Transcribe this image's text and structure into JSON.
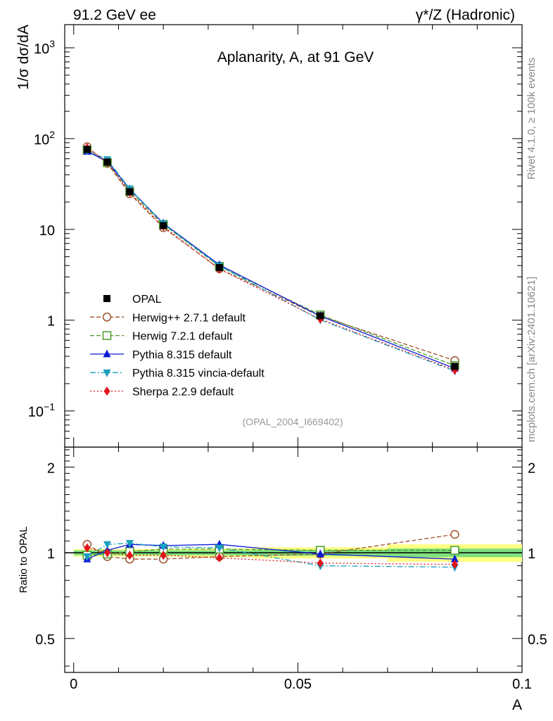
{
  "header": {
    "left_label": "91.2 GeV ee",
    "right_label": "γ*/Z (Hadronic)"
  },
  "side_labels": {
    "rivet": "Rivet 4.1.0, ≥ 100k events",
    "mcplots": "mcplots.cern.ch [arXiv:2401.10621]"
  },
  "chart_data": {
    "type": "line",
    "title": "Aplanarity, A, at 91 GeV",
    "watermark": "(OPAL_2004_I669402)",
    "xlabel": "A",
    "ylabel": "1/σ  dσ/dA",
    "ratio_ylabel": "Ratio to OPAL",
    "xlim": [
      -0.002,
      0.1
    ],
    "ylim": [
      0.04,
      1800
    ],
    "yscale": "log",
    "ratio_ylim": [
      0.38,
      2.35
    ],
    "x_ticks": [
      {
        "value": 0,
        "label": "0"
      },
      {
        "value": 0.05,
        "label": "0.05"
      },
      {
        "value": 0.1,
        "label": "0.1"
      }
    ],
    "y_ticks": [
      {
        "value": 0.1,
        "label": "10",
        "exp": "−1"
      },
      {
        "value": 1,
        "label": "1",
        "exp": ""
      },
      {
        "value": 10,
        "label": "10",
        "exp": ""
      },
      {
        "value": 100,
        "label": "10",
        "exp": "2"
      },
      {
        "value": 1000,
        "label": "10",
        "exp": "3"
      }
    ],
    "ratio_ticks": [
      {
        "value": 0.5,
        "label": "0.5"
      },
      {
        "value": 1,
        "label": "1"
      },
      {
        "value": 2,
        "label": "2"
      }
    ],
    "bins": [
      [
        0.0,
        0.005
      ],
      [
        0.005,
        0.01
      ],
      [
        0.01,
        0.015
      ],
      [
        0.015,
        0.025
      ],
      [
        0.025,
        0.04
      ],
      [
        0.04,
        0.07
      ],
      [
        0.07,
        0.1
      ]
    ],
    "x": [
      0.003,
      0.0075,
      0.0125,
      0.02,
      0.0325,
      0.055,
      0.085
    ],
    "data": {
      "name": "OPAL",
      "values": [
        76,
        55,
        26,
        11,
        3.8,
        1.12,
        0.31
      ],
      "band_inner": [
        0.02,
        0.02,
        0.02,
        0.02,
        0.02,
        0.025,
        0.035
      ],
      "band_outer": [
        0.03,
        0.03,
        0.03,
        0.03,
        0.035,
        0.045,
        0.07
      ]
    },
    "series": [
      {
        "name": "Herwig++ 2.7.1 default",
        "color": "#a0522d",
        "marker": "open-circle",
        "dash": "6,3",
        "ratios": [
          1.07,
          0.97,
          0.95,
          0.95,
          0.97,
          0.99,
          1.16
        ]
      },
      {
        "name": "Herwig 7.2.1 default",
        "color": "#4c9a2a",
        "marker": "open-square",
        "dash": "6,3",
        "ratios": [
          0.98,
          0.99,
          1.01,
          1.03,
          1.03,
          1.02,
          1.02
        ]
      },
      {
        "name": "Pythia 8.315 default",
        "color": "#0b1bd6",
        "marker": "triangle-up",
        "dash": "",
        "ratios": [
          0.95,
          1.02,
          1.07,
          1.06,
          1.07,
          0.99,
          0.95
        ]
      },
      {
        "name": "Pythia 8.315 vincia-default",
        "color": "#1a9fbd",
        "marker": "triangle-down",
        "dash": "8,3,2,3",
        "ratios": [
          0.97,
          1.07,
          1.08,
          1.05,
          1.04,
          0.9,
          0.89
        ]
      },
      {
        "name": "Sherpa 2.2.9 default",
        "color": "#e3141b",
        "marker": "diamond",
        "dash": "2,3",
        "ratios": [
          1.04,
          1.0,
          0.98,
          0.98,
          0.96,
          0.92,
          0.91
        ]
      }
    ]
  }
}
